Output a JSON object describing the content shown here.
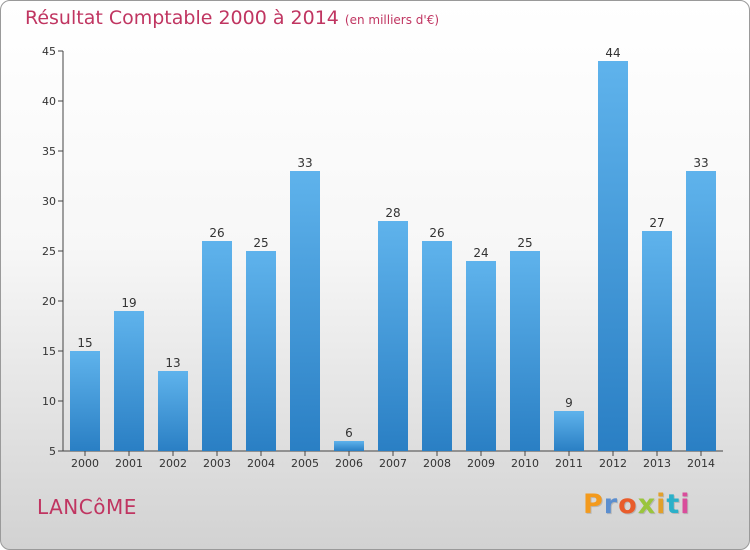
{
  "chart_data": {
    "type": "bar",
    "title": "Résultat Comptable 2000 à 2014",
    "subtitle": "(en milliers d'€)",
    "categories": [
      "2000",
      "2001",
      "2002",
      "2003",
      "2004",
      "2005",
      "2006",
      "2007",
      "2008",
      "2009",
      "2010",
      "2011",
      "2012",
      "2013",
      "2014"
    ],
    "values": [
      15,
      19,
      13,
      26,
      25,
      33,
      6,
      28,
      26,
      24,
      25,
      9,
      44,
      27,
      33
    ],
    "ylim": [
      5,
      45
    ],
    "yticks": [
      5,
      10,
      15,
      20,
      25,
      30,
      35,
      40,
      45
    ],
    "xlabel": "",
    "ylabel": "",
    "grid": false,
    "bar_color_light": "#5fb3ec",
    "bar_color_dark": "#2a7fc4"
  },
  "footer": {
    "commune": "LANCôME",
    "brand": "Proxiti"
  },
  "colors": {
    "title": "#c03561",
    "axis": "#444444",
    "brand_letters": [
      "#f39a1d",
      "#5b8ecf",
      "#e95c2b",
      "#9ac53d",
      "#e2a02b",
      "#2bb0c9",
      "#d94d9b"
    ]
  }
}
